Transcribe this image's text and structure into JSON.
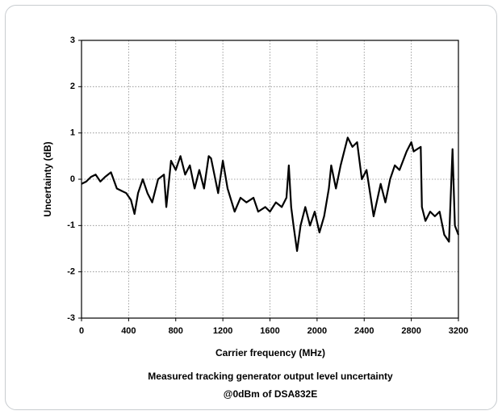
{
  "chart_data": {
    "type": "line",
    "x_label": "Carrier frequency (MHz)",
    "y_label": "Uncertainty (dB)",
    "caption": [
      "Measured tracking generator output level uncertainty",
      "@0dBm of DSA832E"
    ],
    "xlim": [
      0,
      3200
    ],
    "xticks": [
      0,
      400,
      800,
      1200,
      1600,
      2000,
      2400,
      2800,
      3200
    ],
    "ylim": [
      -3,
      3
    ],
    "yticks": [
      -3,
      -2,
      -1,
      0,
      1,
      2,
      3
    ],
    "grid": true,
    "series": [
      {
        "color": "#000000",
        "x": [
          0,
          40,
          80,
          120,
          160,
          200,
          250,
          300,
          340,
          380,
          420,
          450,
          480,
          520,
          560,
          600,
          650,
          700,
          720,
          760,
          800,
          840,
          880,
          920,
          960,
          1000,
          1040,
          1080,
          1100,
          1160,
          1200,
          1240,
          1300,
          1350,
          1400,
          1460,
          1500,
          1560,
          1600,
          1650,
          1700,
          1740,
          1760,
          1780,
          1800,
          1830,
          1860,
          1900,
          1940,
          1980,
          2020,
          2060,
          2100,
          2120,
          2160,
          2200,
          2260,
          2300,
          2340,
          2380,
          2420,
          2480,
          2540,
          2580,
          2620,
          2660,
          2700,
          2760,
          2800,
          2820,
          2880,
          2890,
          2920,
          2960,
          3000,
          3040,
          3080,
          3120,
          3150,
          3170,
          3200
        ],
        "values": [
          -0.1,
          -0.05,
          0.05,
          0.1,
          -0.05,
          0.05,
          0.15,
          -0.2,
          -0.25,
          -0.3,
          -0.45,
          -0.75,
          -0.3,
          0.0,
          -0.3,
          -0.5,
          0.0,
          0.1,
          -0.6,
          0.4,
          0.2,
          0.5,
          0.1,
          0.3,
          -0.2,
          0.2,
          -0.2,
          0.5,
          0.45,
          -0.3,
          0.4,
          -0.2,
          -0.7,
          -0.4,
          -0.5,
          -0.4,
          -0.7,
          -0.6,
          -0.7,
          -0.5,
          -0.6,
          -0.4,
          0.3,
          -0.6,
          -1.0,
          -1.55,
          -1.0,
          -0.6,
          -1.0,
          -0.7,
          -1.15,
          -0.8,
          -0.2,
          0.3,
          -0.2,
          0.3,
          0.9,
          0.7,
          0.8,
          0.0,
          0.2,
          -0.8,
          -0.1,
          -0.5,
          0.0,
          0.3,
          0.2,
          0.6,
          0.8,
          0.6,
          0.7,
          -0.6,
          -0.9,
          -0.7,
          -0.8,
          -0.7,
          -1.2,
          -1.35,
          0.65,
          -1.0,
          -1.2
        ]
      }
    ]
  }
}
